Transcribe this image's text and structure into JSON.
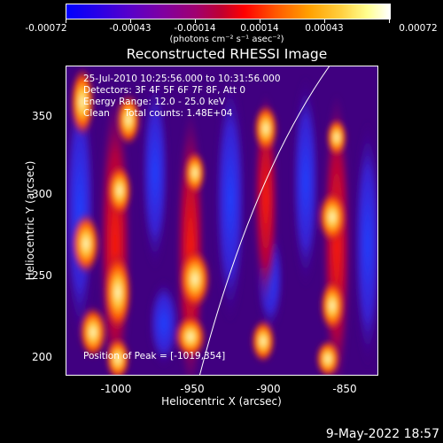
{
  "colorbar": {
    "tick_labels": [
      "-0.00072",
      "-0.00043",
      "-0.00014",
      "0.00014",
      "0.00043",
      "0.00072"
    ],
    "units": "(photons cm⁻² s⁻¹ asec⁻²)"
  },
  "plot": {
    "title": "Reconstructed RHESSI Image",
    "info_lines": [
      "25-Jul-2010 10:25:56.000 to 10:31:56.000",
      "Detectors: 3F 4F 5F 6F 7F 8F, Att 0",
      "Energy Range: 12.0 - 25.0 keV",
      "Clean     Total counts: 1.48E+04"
    ],
    "peak_text": "Position of Peak = [-1019,354]",
    "x_axis_label": "Heliocentric X (arcsec)",
    "y_axis_label": "Heliocentric Y (arcsec)",
    "x_ticks": [
      "-1000",
      "-950",
      "-900",
      "-850"
    ],
    "y_ticks": [
      "350",
      "300",
      "250",
      "200"
    ]
  },
  "footer": {
    "date": "9-May-2022 18:57"
  }
}
